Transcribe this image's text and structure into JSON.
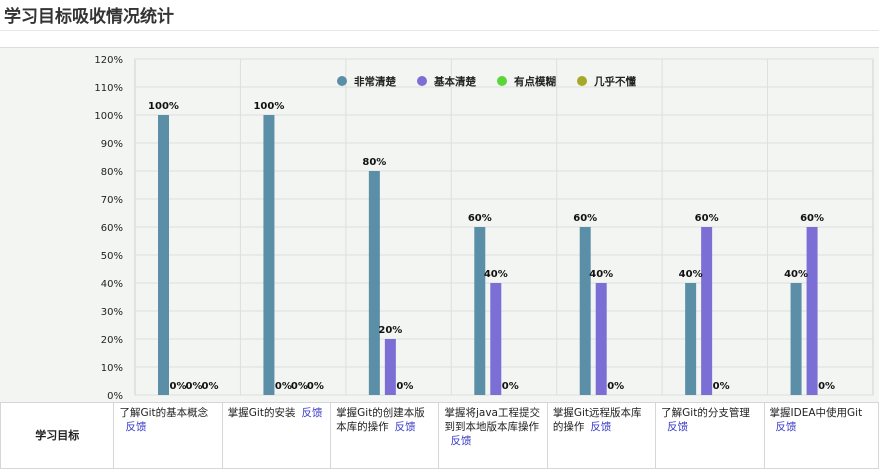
{
  "page": {
    "title": "学习目标吸收情况统计"
  },
  "chart_data": {
    "type": "bar",
    "ylim": [
      0,
      120
    ],
    "y_ticks": [
      "0%",
      "10%",
      "20%",
      "30%",
      "40%",
      "50%",
      "60%",
      "70%",
      "80%",
      "90%",
      "100%",
      "110%",
      "120%"
    ],
    "grid": true,
    "legend_position": "top-right",
    "series": [
      {
        "name": "非常清楚",
        "color": "#5b8fa8",
        "values": [
          100,
          100,
          80,
          60,
          60,
          40,
          40
        ]
      },
      {
        "name": "基本清楚",
        "color": "#7b6fd6",
        "values": [
          0,
          0,
          20,
          40,
          40,
          60,
          60
        ]
      },
      {
        "name": "有点模糊",
        "color": "#5ad63a",
        "values": [
          0,
          0,
          0,
          0,
          0,
          0,
          0
        ]
      },
      {
        "name": "几乎不懂",
        "color": "#a8a828",
        "values": [
          0,
          0,
          0,
          0,
          0,
          0,
          0
        ]
      }
    ],
    "data_labels": [
      [
        "100%",
        "0%",
        "0%",
        "0%"
      ],
      [
        "100%",
        "0%",
        "0%",
        "0%"
      ],
      [
        "80%",
        "20%",
        "0%"
      ],
      [
        "60%",
        "40%",
        "0%"
      ],
      [
        "60%",
        "40%",
        "0%"
      ],
      [
        "40%",
        "60%",
        "0%"
      ],
      [
        "40%",
        "60%",
        "0%"
      ]
    ]
  },
  "table": {
    "row_header": "学习目标",
    "feedback_label": "反馈",
    "goals": [
      "了解Git的基本概念",
      "掌握Git的安装",
      "掌握Git的创建本版本库的操作",
      "掌握将java工程提交到到本地版本库操作",
      "掌握Git远程版本库的操作",
      "了解Git的分支管理",
      "掌握IDEA中使用Git"
    ]
  }
}
